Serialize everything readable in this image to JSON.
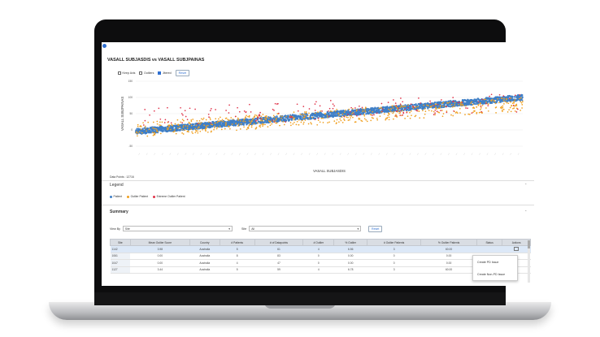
{
  "chart_title": "VASALL SUBJASDIS vs VASALL SUBJPAINAS",
  "controls": {
    "keep_axis": "Keep Axis",
    "outliers": "Outliers",
    "jitered": "Jitered",
    "reset": "Reset"
  },
  "chart_data": {
    "type": "scatter",
    "title": "VASALL SUBJASDIS vs VASALL SUBJPAINAS",
    "xlabel": "VASALL SUBJASDIS",
    "ylabel": "VASALL SUBJPAINAS",
    "yticks": [
      "150",
      "100",
      "50",
      "0",
      "-50"
    ],
    "ylim": [
      -50,
      150
    ],
    "xlim": [
      0,
      100
    ],
    "xtick_count": 50,
    "series": [
      {
        "name": "Patient",
        "trend": {
          "x": [
            0,
            100
          ],
          "y": [
            -5,
            100
          ]
        },
        "spread": 25
      },
      {
        "name": "Outlier Patient",
        "trend": {
          "x": [
            0,
            100
          ],
          "y": [
            0,
            80
          ]
        },
        "spread": 45
      },
      {
        "name": "Extreme Outlier Patient",
        "trend": {
          "x": [
            0,
            100
          ],
          "y": [
            35,
            85
          ]
        },
        "spread": 60
      }
    ],
    "grid": true,
    "legend_placement": "below"
  },
  "data_points": "Data Points : 12716",
  "legend": {
    "title": "Legend",
    "items": [
      {
        "label": "Patient",
        "color": "#3f7fc6"
      },
      {
        "label": "Outlier Patient",
        "color": "#f0a020"
      },
      {
        "label": "Extreme Outlier Patient",
        "color": "#e0344a"
      }
    ]
  },
  "summary": {
    "title": "Summary",
    "view_by_label": "View By",
    "view_by_value": "Site",
    "site_label": "Site",
    "site_value": "All",
    "reset": "Reset",
    "columns": [
      "Site",
      "Mean Outlier Score",
      "Country",
      "# Patients",
      "# of Datapoints",
      "# Outlier",
      "% Outlier",
      "# Outlier Patients",
      "% Outlier Patients",
      "Status",
      "Actions"
    ],
    "rows": [
      [
        "1142",
        "3.98",
        "Australia",
        "5",
        "61",
        "4",
        "6.56",
        "3",
        "60.00",
        "",
        ""
      ],
      [
        "1061",
        "0.00",
        "Australia",
        "8",
        "83",
        "0",
        "0.00",
        "0",
        "0.00",
        "",
        ""
      ],
      [
        "1047",
        "0.00",
        "Australia",
        "4",
        "47",
        "0",
        "0.00",
        "0",
        "0.00",
        "",
        ""
      ],
      [
        "1127",
        "3.44",
        "Australia",
        "5",
        "59",
        "4",
        "6.78",
        "3",
        "60.00",
        "",
        ""
      ]
    ]
  },
  "actions_menu": [
    "Create PD Issue",
    "Create Non-PD Issue"
  ],
  "colors": {
    "accent": "#2f6fd1",
    "patient": "#3f7fc6",
    "outlier": "#f0a020",
    "extreme": "#e0344a"
  }
}
